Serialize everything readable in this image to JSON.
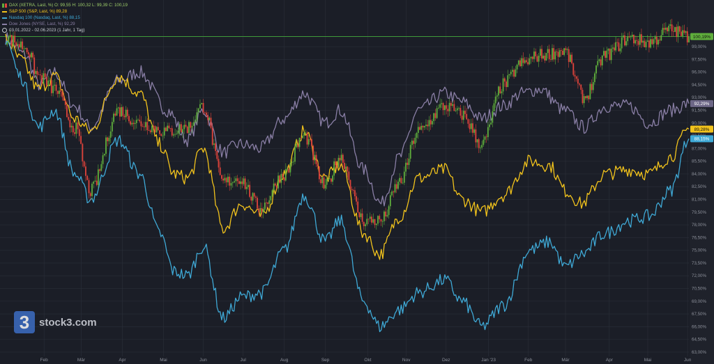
{
  "legend": {
    "dax": "DAX (XETRA, Last, %)  O: 99,55  H: 100,32  L: 99,39  C: 100,19",
    "sp500": "S&P 500 (S&P, Last, %)  89,28",
    "nasdaq": "Nasdaq 100 (Nasdaq, Last, %)  88,15",
    "dow": "Dow Jones (NYSE, Last, %)  92,29",
    "period": "03.01.2022 - 02.06.2023  (1 Jahr, 1 Tag)"
  },
  "logo": {
    "mark": "3",
    "name": "stock3.com"
  },
  "colors": {
    "background": "#1b1e27",
    "axis_panel": "#1f222b",
    "grid": "#2b2f39",
    "dax_up": "#5fae3c",
    "dax_down": "#e0433b",
    "sp500": "#f2c31c",
    "nasdaq": "#3fa9d6",
    "dow": "#8a7fa6",
    "reference_line": "#3f9a3a"
  },
  "chart_data": {
    "type": "line",
    "x_ticks": [
      "Feb",
      "Mär",
      "Apr",
      "Mai",
      "Jun",
      "Jul",
      "Aug",
      "Sep",
      "Okt",
      "Nov",
      "Dez",
      "Jan '23",
      "Feb",
      "Mär",
      "Apr",
      "Mai",
      "Jun"
    ],
    "y_ticks": [
      "63,00%",
      "64,50%",
      "66,00%",
      "67,50%",
      "69,00%",
      "70,50%",
      "72,00%",
      "73,50%",
      "75,00%",
      "76,50%",
      "78,00%",
      "79,50%",
      "81,00%",
      "82,50%",
      "84,00%",
      "85,50%",
      "87,00%",
      "88,50%",
      "90,00%",
      "91,50%",
      "93,00%",
      "94,50%",
      "96,00%",
      "97,50%",
      "99,00%"
    ],
    "ylim": [
      62.5,
      104.5
    ],
    "xlim": [
      "2022-01-03",
      "2023-06-02"
    ],
    "reference_line": 100.19,
    "last_value_labels": [
      {
        "series": "DAX",
        "text": "100,19%",
        "value": 100.19,
        "color": "#5fae3c"
      },
      {
        "series": "Dow Jones",
        "text": "92,29%",
        "value": 92.29,
        "color": "#6d6787"
      },
      {
        "series": "S&P 500",
        "text": "89,28%",
        "value": 89.28,
        "color": "#f2c31c"
      },
      {
        "series": "Nasdaq 100",
        "text": "88,15%",
        "value": 88.15,
        "color": "#3fa9d6"
      }
    ],
    "series": [
      {
        "name": "Dow Jones",
        "kind": "line",
        "color": "#8a7fa6",
        "x": [
          "2022-01-03",
          "2022-01-18",
          "2022-01-28",
          "2022-02-09",
          "2022-02-24",
          "2022-03-08",
          "2022-03-29",
          "2022-04-14",
          "2022-05-05",
          "2022-05-20",
          "2022-06-01",
          "2022-06-16",
          "2022-06-28",
          "2022-07-14",
          "2022-08-01",
          "2022-08-16",
          "2022-09-01",
          "2022-09-12",
          "2022-09-30",
          "2022-10-13",
          "2022-10-27",
          "2022-11-10",
          "2022-11-30",
          "2022-12-13",
          "2022-12-28",
          "2023-01-13",
          "2023-01-27",
          "2023-02-10",
          "2023-02-28",
          "2023-03-15",
          "2023-03-31",
          "2023-04-18",
          "2023-05-03",
          "2023-05-19",
          "2023-06-02"
        ],
        "values": [
          100.0,
          98.0,
          94.5,
          96.0,
          92.0,
          89.5,
          95.0,
          96.0,
          91.5,
          88.0,
          91.5,
          86.5,
          87.5,
          87.0,
          90.5,
          93.5,
          90.0,
          91.5,
          84.5,
          80.5,
          86.0,
          91.5,
          93.5,
          92.5,
          90.5,
          92.0,
          93.5,
          94.0,
          91.5,
          89.5,
          92.0,
          92.0,
          90.0,
          91.5,
          92.29
        ]
      },
      {
        "name": "S&P 500",
        "kind": "line",
        "color": "#f2c31c",
        "x": [
          "2022-01-03",
          "2022-01-14",
          "2022-01-28",
          "2022-02-09",
          "2022-02-24",
          "2022-03-08",
          "2022-03-29",
          "2022-04-14",
          "2022-04-29",
          "2022-05-10",
          "2022-05-20",
          "2022-06-01",
          "2022-06-16",
          "2022-06-30",
          "2022-07-15",
          "2022-08-01",
          "2022-08-16",
          "2022-09-01",
          "2022-09-12",
          "2022-09-30",
          "2022-10-12",
          "2022-10-27",
          "2022-11-10",
          "2022-11-30",
          "2022-12-13",
          "2022-12-28",
          "2023-01-13",
          "2023-02-02",
          "2023-02-17",
          "2023-03-01",
          "2023-03-13",
          "2023-03-31",
          "2023-04-18",
          "2023-05-03",
          "2023-05-19",
          "2023-06-02"
        ],
        "values": [
          100.0,
          97.5,
          94.0,
          95.5,
          90.5,
          89.0,
          95.5,
          93.5,
          87.5,
          84.0,
          83.5,
          87.0,
          77.5,
          80.5,
          79.0,
          84.0,
          89.0,
          83.5,
          85.0,
          77.0,
          74.5,
          79.0,
          83.5,
          84.5,
          81.0,
          79.5,
          81.5,
          85.5,
          85.0,
          82.0,
          80.5,
          84.0,
          84.5,
          84.0,
          86.0,
          89.28
        ]
      },
      {
        "name": "Nasdaq 100",
        "kind": "line",
        "color": "#3fa9d6",
        "x": [
          "2022-01-03",
          "2022-01-14",
          "2022-01-28",
          "2022-02-09",
          "2022-02-24",
          "2022-03-08",
          "2022-03-29",
          "2022-04-14",
          "2022-04-29",
          "2022-05-10",
          "2022-05-20",
          "2022-06-01",
          "2022-06-16",
          "2022-06-30",
          "2022-07-15",
          "2022-08-01",
          "2022-08-16",
          "2022-09-01",
          "2022-09-12",
          "2022-09-30",
          "2022-10-12",
          "2022-10-27",
          "2022-11-10",
          "2022-11-30",
          "2022-12-13",
          "2022-12-28",
          "2023-01-13",
          "2023-02-02",
          "2023-02-17",
          "2023-03-01",
          "2023-03-13",
          "2023-03-31",
          "2023-04-18",
          "2023-05-03",
          "2023-05-19",
          "2023-06-02"
        ],
        "values": [
          100.0,
          95.5,
          89.5,
          91.5,
          84.0,
          81.0,
          88.0,
          84.0,
          77.0,
          72.5,
          72.0,
          75.5,
          67.0,
          69.5,
          70.0,
          75.0,
          81.5,
          76.0,
          78.5,
          69.0,
          66.0,
          68.0,
          70.0,
          71.5,
          69.0,
          66.0,
          68.5,
          75.0,
          76.0,
          73.0,
          74.5,
          77.0,
          78.5,
          79.0,
          82.0,
          88.15
        ]
      },
      {
        "name": "DAX",
        "kind": "candles",
        "up_color": "#5fae3c",
        "down_color": "#e0433b",
        "x": [
          "2022-01-03",
          "2022-01-18",
          "2022-01-28",
          "2022-02-09",
          "2022-02-24",
          "2022-03-08",
          "2022-03-29",
          "2022-04-14",
          "2022-05-05",
          "2022-05-20",
          "2022-06-01",
          "2022-06-16",
          "2022-06-28",
          "2022-07-14",
          "2022-08-01",
          "2022-08-16",
          "2022-09-01",
          "2022-09-12",
          "2022-09-30",
          "2022-10-13",
          "2022-10-27",
          "2022-11-10",
          "2022-11-30",
          "2022-12-13",
          "2022-12-28",
          "2023-01-13",
          "2023-01-27",
          "2023-02-10",
          "2023-02-28",
          "2023-03-15",
          "2023-03-31",
          "2023-04-18",
          "2023-05-03",
          "2023-05-19",
          "2023-06-02"
        ],
        "values": [
          100.0,
          99.0,
          95.5,
          94.0,
          89.5,
          82.0,
          91.5,
          90.0,
          89.0,
          89.5,
          92.0,
          83.0,
          83.5,
          80.0,
          84.0,
          88.5,
          82.5,
          86.0,
          78.5,
          78.5,
          83.0,
          89.0,
          92.0,
          91.0,
          87.5,
          94.5,
          97.0,
          98.0,
          98.5,
          93.0,
          98.0,
          100.0,
          99.5,
          101.0,
          100.19
        ]
      }
    ]
  }
}
